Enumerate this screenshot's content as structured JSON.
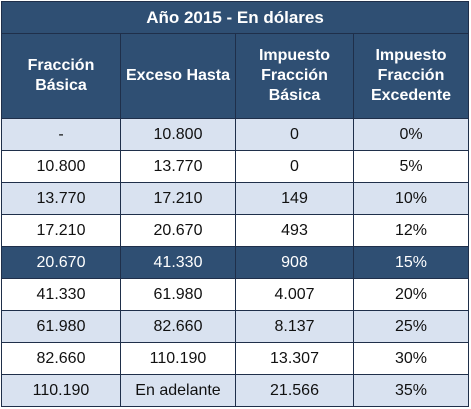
{
  "table": {
    "title": "Año 2015 - En dólares",
    "headers": [
      [
        "Fracción",
        "Básica"
      ],
      [
        "Exceso Hasta"
      ],
      [
        "Impuesto",
        "Fracción",
        "Básica"
      ],
      [
        "Impuesto",
        "Fracción",
        "Excedente"
      ]
    ],
    "rows": [
      [
        "-",
        "10.800",
        "0",
        "0%"
      ],
      [
        "10.800",
        "13.770",
        "0",
        "5%"
      ],
      [
        "13.770",
        "17.210",
        "149",
        "10%"
      ],
      [
        "17.210",
        "20.670",
        "493",
        "12%"
      ],
      [
        "20.670",
        "41.330",
        "908",
        "15%"
      ],
      [
        "41.330",
        "61.980",
        "4.007",
        "20%"
      ],
      [
        "61.980",
        "82.660",
        "8.137",
        "25%"
      ],
      [
        "82.660",
        "110.190",
        "13.307",
        "30%"
      ],
      [
        "110.190",
        "En adelante",
        "21.566",
        "35%"
      ]
    ],
    "highlighted_row": 4
  },
  "colors": {
    "header_bg": "#2f4f73",
    "stripe_bg": "#d9e2f0",
    "white_bg": "#ffffff"
  }
}
